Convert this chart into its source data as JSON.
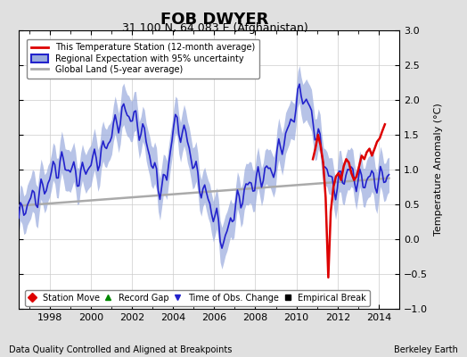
{
  "title": "FOB DWYER",
  "subtitle": "31.100 N, 64.083 E (Afghanistan)",
  "ylabel": "Temperature Anomaly (°C)",
  "footer_left": "Data Quality Controlled and Aligned at Breakpoints",
  "footer_right": "Berkeley Earth",
  "ylim": [
    -1,
    3
  ],
  "xlim_start": 1996.5,
  "xlim_end": 2015.0,
  "yticks": [
    -1,
    -0.5,
    0,
    0.5,
    1,
    1.5,
    2,
    2.5,
    3
  ],
  "xticks": [
    1998,
    2000,
    2002,
    2004,
    2006,
    2008,
    2010,
    2012,
    2014
  ],
  "bg_color": "#e0e0e0",
  "plot_bg_color": "#ffffff",
  "regional_color": "#2222cc",
  "regional_fill_color": "#99aadd",
  "station_color": "#dd0000",
  "global_color": "#aaaaaa",
  "legend1_labels": [
    "This Temperature Station (12-month average)",
    "Regional Expectation with 95% uncertainty",
    "Global Land (5-year average)"
  ],
  "legend2_labels": [
    "Station Move",
    "Record Gap",
    "Time of Obs. Change",
    "Empirical Break"
  ],
  "title_fontsize": 13,
  "subtitle_fontsize": 9,
  "tick_fontsize": 8,
  "ylabel_fontsize": 8,
  "legend_fontsize": 7,
  "footer_fontsize": 7
}
